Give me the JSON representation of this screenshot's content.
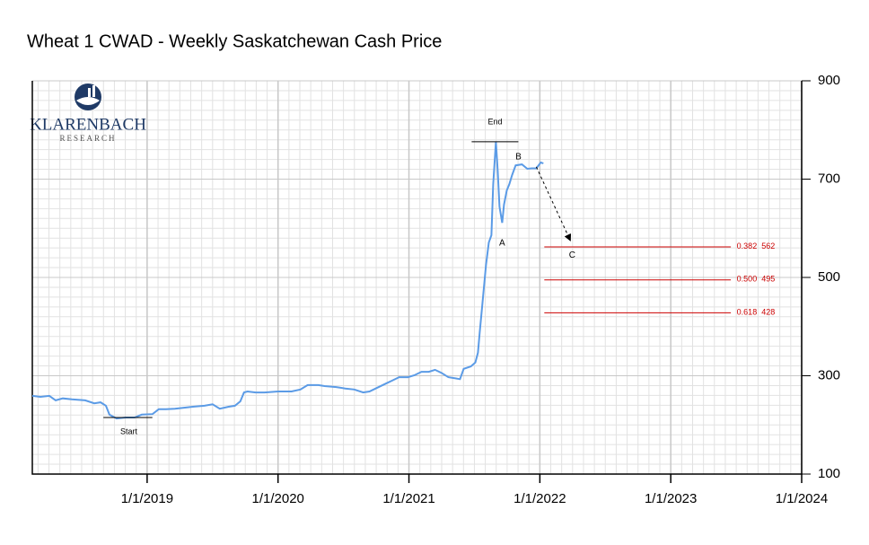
{
  "chart_data": {
    "type": "line",
    "title": "Wheat 1 CWAD - Weekly Saskatchewan Cash Price",
    "logo": {
      "name": "KLARENBACH",
      "tagline": "RESEARCH"
    },
    "x": [
      2018.123,
      2018.185,
      2018.253,
      2018.301,
      2018.356,
      2018.425,
      2018.527,
      2018.596,
      2018.644,
      2018.685,
      2018.712,
      2018.767,
      2018.836,
      2018.904,
      2018.959,
      2019.041,
      2019.089,
      2019.144,
      2019.212,
      2019.281,
      2019.349,
      2019.438,
      2019.5,
      2019.555,
      2019.623,
      2019.671,
      2019.712,
      2019.74,
      2019.767,
      2019.829,
      2019.897,
      2020.0,
      2020.103,
      2020.171,
      2020.226,
      2020.308,
      2020.356,
      2020.445,
      2020.514,
      2020.582,
      2020.651,
      2020.699,
      2020.753,
      2020.822,
      2020.87,
      2020.925,
      2020.993,
      2021.041,
      2021.096,
      2021.151,
      2021.199,
      2021.247,
      2021.301,
      2021.349,
      2021.39,
      2021.418,
      2021.473,
      2021.507,
      2021.527,
      2021.541,
      2021.562,
      2021.589,
      2021.61,
      2021.63,
      2021.644,
      2021.664,
      2021.678,
      2021.692,
      2021.712,
      2021.726,
      2021.747,
      2021.767,
      2021.788,
      2021.815,
      2021.863,
      2021.904,
      2021.938,
      2021.973,
      2022.007,
      2022.027
    ],
    "series": [
      {
        "name": "Weekly Saskatchewan Cash Price",
        "color": "#5b9be6",
        "values": [
          259,
          257,
          259,
          250,
          254,
          252,
          250,
          244,
          246,
          239,
          221,
          213,
          215,
          215,
          221,
          222,
          232,
          232,
          233,
          235,
          237,
          239,
          242,
          233,
          237,
          239,
          248,
          266,
          268,
          266,
          266,
          268,
          268,
          272,
          281,
          281,
          279,
          277,
          274,
          272,
          266,
          268,
          275,
          284,
          290,
          297,
          297,
          301,
          308,
          308,
          312,
          306,
          297,
          295,
          293,
          314,
          319,
          327,
          347,
          389,
          449,
          526,
          571,
          586,
          690,
          776,
          717,
          644,
          611,
          648,
          677,
          690,
          708,
          728,
          730,
          721,
          722,
          722,
          734,
          732
        ]
      }
    ],
    "xlim": [
      2018.123,
      2024
    ],
    "xticks": [
      {
        "value": 2019,
        "label": "1/1/2019"
      },
      {
        "value": 2020,
        "label": "1/1/2020"
      },
      {
        "value": 2021,
        "label": "1/1/2021"
      },
      {
        "value": 2022,
        "label": "1/1/2022"
      },
      {
        "value": 2023,
        "label": "1/1/2023"
      },
      {
        "value": 2024,
        "label": "1/1/2024"
      }
    ],
    "ylim": [
      100,
      900
    ],
    "yticks": [
      100,
      300,
      500,
      700,
      900
    ],
    "grid": true,
    "start": {
      "label": "Start",
      "value": 215
    },
    "end": {
      "label": "End",
      "value": 776
    },
    "waves": [
      "A",
      "B",
      "C"
    ],
    "retracements": [
      {
        "ratio": "0.382",
        "value": 562
      },
      {
        "ratio": "0.500",
        "value": 495
      },
      {
        "ratio": "0.618",
        "value": 428
      }
    ],
    "retracement_color": "#cc0000"
  }
}
